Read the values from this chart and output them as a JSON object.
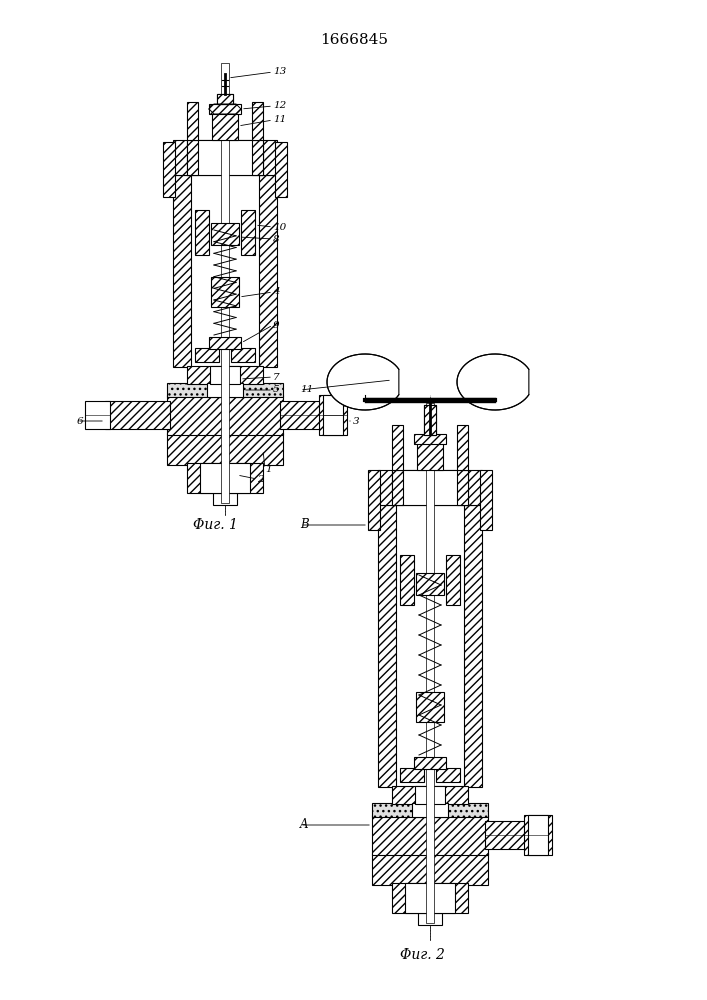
{
  "title": "1666845",
  "fig1_label": "Φиг. 1",
  "fig2_label": "Φиг. 2",
  "bg_color": "#ffffff",
  "line_color": "#000000"
}
